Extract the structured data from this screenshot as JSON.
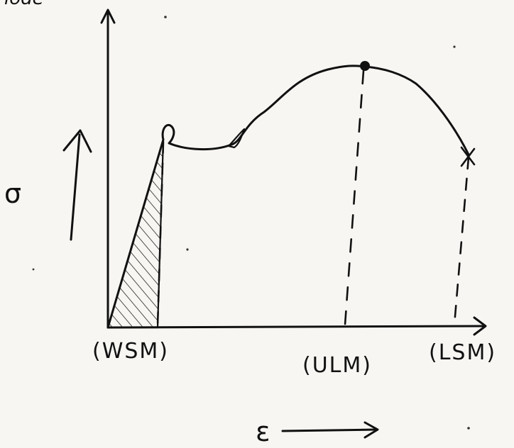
{
  "diagram": {
    "y_symbol": "σ",
    "x_symbol": "ε",
    "top_text": "lode",
    "x_labels": {
      "wsm": "(WSM)",
      "ulm": "(ULM)",
      "lsm": "(LSM)"
    }
  },
  "colors": {
    "ink": "#111111",
    "paper": "#f7f6f3"
  }
}
